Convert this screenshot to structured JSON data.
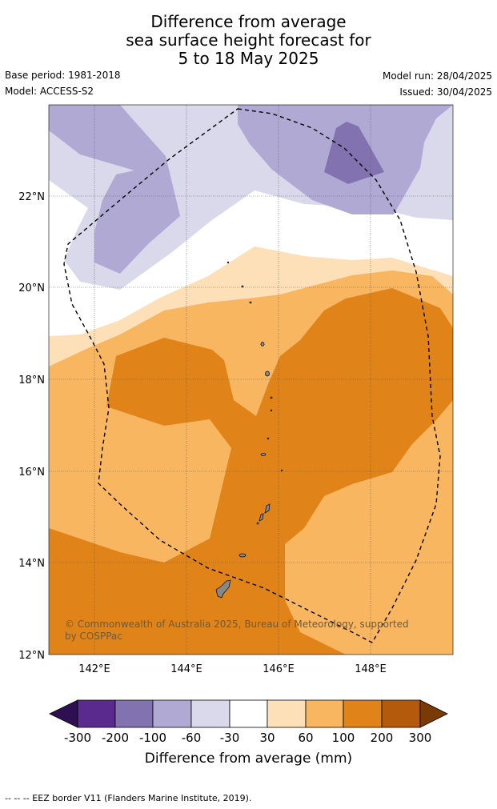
{
  "title": {
    "line1": "Difference from average",
    "line2": "sea surface height forecast for",
    "line3": "5 to 18 May 2025"
  },
  "meta": {
    "base_period": "Base period: 1981-2018",
    "model": "Model: ACCESS-S2",
    "model_run": "Model run: 28/04/2025",
    "issued": "Issued: 30/04/2025"
  },
  "map": {
    "lat_labels": [
      "22°N",
      "20°N",
      "18°N",
      "16°N",
      "14°N",
      "12°N"
    ],
    "lon_labels": [
      "142°E",
      "144°E",
      "146°E",
      "148°E"
    ],
    "copyright_line1": "© Commonwealth of Australia 2025, Bureau of Meteorology, supported",
    "copyright_line2": "by COSPPac"
  },
  "colorbar": {
    "title": "Difference from average (mm)",
    "tick_labels": [
      "-300",
      "-200",
      "-100",
      "-60",
      "-30",
      "30",
      "60",
      "100",
      "200",
      "300"
    ],
    "colors": [
      "#2d0f52",
      "#5b2a8f",
      "#8273b0",
      "#b0a9d3",
      "#d9d9eb",
      "#ffffff",
      "#fde0b7",
      "#f9b661",
      "#e0841a",
      "#b45a0c",
      "#7a3a06"
    ]
  },
  "footer": {
    "legend_text": "-- -- -- EEZ border V11 (Flanders Marine Institute, 2019)."
  }
}
